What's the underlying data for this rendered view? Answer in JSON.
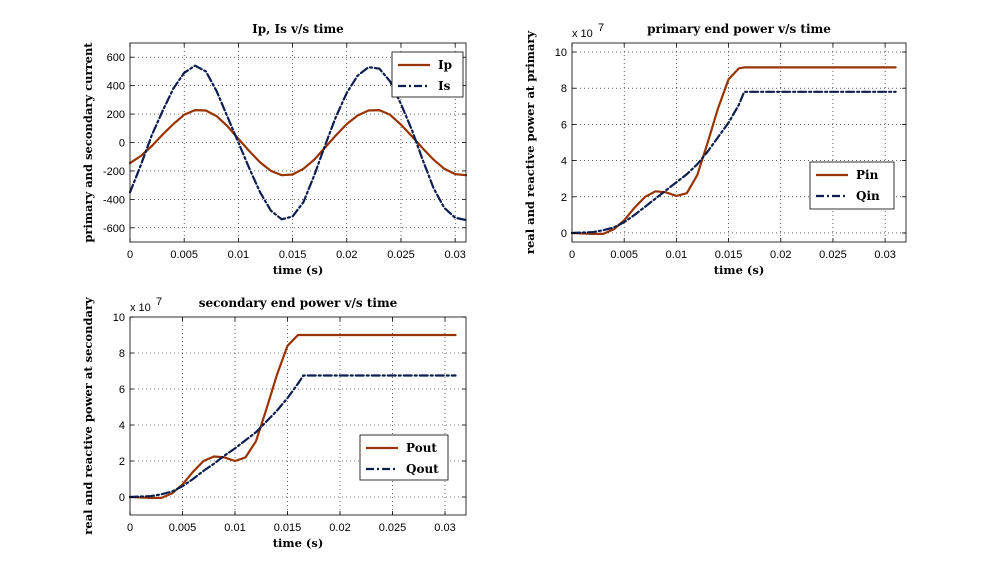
{
  "chart_data": [
    {
      "type": "line",
      "title": "Ip, Is v/s time",
      "xlabel": "time (s)",
      "ylabel": "primary and secondary current",
      "xlim": [
        0,
        0.031
      ],
      "ylim": [
        -700,
        700
      ],
      "xticks": [
        0,
        0.005,
        0.01,
        0.015,
        0.02,
        0.025,
        0.03
      ],
      "xtick_labels": [
        "0",
        "0.005",
        "0.01",
        "0.015",
        "0.02",
        "0.025",
        "0.03"
      ],
      "yticks": [
        -600,
        -400,
        -200,
        0,
        200,
        400,
        600
      ],
      "ytick_labels": [
        "-600",
        "-400",
        "-200",
        "0",
        "200",
        "400",
        "600"
      ],
      "grid": true,
      "legend_position": "top-right",
      "series": [
        {
          "name": "Ip",
          "color": "#993300",
          "style": "solid",
          "x": [
            0,
            0.001,
            0.002,
            0.003,
            0.004,
            0.005,
            0.006,
            0.007,
            0.008,
            0.009,
            0.01,
            0.011,
            0.012,
            0.013,
            0.014,
            0.015,
            0.016,
            0.017,
            0.018,
            0.019,
            0.02,
            0.021,
            0.022,
            0.023,
            0.024,
            0.025,
            0.026,
            0.027,
            0.028,
            0.029,
            0.03,
            0.031
          ],
          "y": [
            -145,
            -95,
            -25,
            55,
            130,
            195,
            228,
            225,
            185,
            115,
            25,
            -60,
            -140,
            -200,
            -230,
            -225,
            -185,
            -120,
            -35,
            50,
            130,
            190,
            225,
            228,
            195,
            125,
            45,
            -40,
            -120,
            -185,
            -222,
            -230
          ]
        },
        {
          "name": "Is",
          "color": "#0d1f50",
          "style": "dashdot",
          "x": [
            0,
            0.001,
            0.002,
            0.003,
            0.004,
            0.005,
            0.006,
            0.007,
            0.008,
            0.009,
            0.01,
            0.011,
            0.012,
            0.013,
            0.014,
            0.015,
            0.016,
            0.017,
            0.018,
            0.019,
            0.02,
            0.021,
            0.022,
            0.023,
            0.024,
            0.025,
            0.026,
            0.027,
            0.028,
            0.029,
            0.03,
            0.031
          ],
          "y": [
            -350,
            -160,
            50,
            220,
            380,
            490,
            540,
            500,
            360,
            180,
            0,
            -180,
            -350,
            -480,
            -540,
            -520,
            -420,
            -230,
            -20,
            180,
            350,
            470,
            530,
            520,
            430,
            270,
            90,
            -120,
            -320,
            -460,
            -530,
            -545
          ]
        }
      ]
    },
    {
      "type": "line",
      "title": "primary end power v/s time",
      "xlabel": "time (s)",
      "ylabel": "real and reactive power at primary",
      "multiplier": "x 10",
      "multiplier_exp": "7",
      "xlim": [
        0,
        0.032
      ],
      "ylim": [
        -0.5,
        10.5
      ],
      "xticks": [
        0,
        0.005,
        0.01,
        0.015,
        0.02,
        0.025,
        0.03
      ],
      "xtick_labels": [
        "0",
        "0.005",
        "0.01",
        "0.015",
        "0.02",
        "0.025",
        "0.03"
      ],
      "yticks": [
        0,
        2,
        4,
        6,
        8,
        10
      ],
      "ytick_labels": [
        "0",
        "2",
        "4",
        "6",
        "8",
        "10"
      ],
      "grid": true,
      "legend_position": "bottom-right",
      "series": [
        {
          "name": "Pin",
          "color": "#993300",
          "style": "solid",
          "x": [
            0,
            0.002,
            0.003,
            0.004,
            0.005,
            0.006,
            0.007,
            0.008,
            0.009,
            0.01,
            0.011,
            0.012,
            0.013,
            0.014,
            0.015,
            0.016,
            0.0165,
            0.017,
            0.02,
            0.025,
            0.031
          ],
          "y": [
            0,
            -0.05,
            -0.05,
            0.2,
            0.7,
            1.4,
            2.0,
            2.3,
            2.25,
            2.05,
            2.2,
            3.2,
            5.0,
            6.9,
            8.5,
            9.1,
            9.15,
            9.15,
            9.15,
            9.15,
            9.15
          ]
        },
        {
          "name": "Qin",
          "color": "#0d1f50",
          "style": "dashdot",
          "x": [
            0,
            0.002,
            0.003,
            0.004,
            0.005,
            0.006,
            0.007,
            0.008,
            0.009,
            0.01,
            0.011,
            0.012,
            0.013,
            0.014,
            0.015,
            0.016,
            0.0165,
            0.017,
            0.02,
            0.025,
            0.031
          ],
          "y": [
            0,
            0.05,
            0.15,
            0.3,
            0.6,
            1.0,
            1.45,
            1.9,
            2.35,
            2.8,
            3.25,
            3.8,
            4.5,
            5.3,
            6.1,
            7.1,
            7.8,
            7.8,
            7.8,
            7.8,
            7.8
          ]
        }
      ]
    },
    {
      "type": "line",
      "title": "secondary end power v/s time",
      "xlabel": "time (s)",
      "ylabel": "real and reactive power at secondary",
      "multiplier": "x 10",
      "multiplier_exp": "7",
      "xlim": [
        0,
        0.032
      ],
      "ylim": [
        -1,
        10
      ],
      "xticks": [
        0,
        0.005,
        0.01,
        0.015,
        0.02,
        0.025,
        0.03
      ],
      "xtick_labels": [
        "0",
        "0.005",
        "0.01",
        "0.015",
        "0.02",
        "0.025",
        "0.03"
      ],
      "yticks": [
        0,
        2,
        4,
        6,
        8,
        10
      ],
      "ytick_labels": [
        "0",
        "2",
        "4",
        "6",
        "8",
        "10"
      ],
      "grid": true,
      "legend_position": "bottom-right",
      "series": [
        {
          "name": "Pout",
          "color": "#993300",
          "style": "solid",
          "x": [
            0,
            0.002,
            0.003,
            0.004,
            0.005,
            0.006,
            0.007,
            0.008,
            0.009,
            0.01,
            0.011,
            0.012,
            0.013,
            0.014,
            0.015,
            0.016,
            0.0165,
            0.017,
            0.02,
            0.025,
            0.031
          ],
          "y": [
            0,
            -0.05,
            -0.05,
            0.2,
            0.7,
            1.4,
            2.0,
            2.25,
            2.2,
            2.0,
            2.2,
            3.1,
            4.9,
            6.8,
            8.4,
            9.0,
            9.0,
            9.0,
            9.0,
            9.0,
            9.0
          ]
        },
        {
          "name": "Qout",
          "color": "#0d1f50",
          "style": "dashdot",
          "x": [
            0,
            0.002,
            0.003,
            0.004,
            0.005,
            0.006,
            0.007,
            0.008,
            0.009,
            0.01,
            0.011,
            0.012,
            0.013,
            0.014,
            0.015,
            0.016,
            0.0165,
            0.017,
            0.02,
            0.025,
            0.031
          ],
          "y": [
            0,
            0.05,
            0.15,
            0.3,
            0.6,
            1.0,
            1.45,
            1.85,
            2.3,
            2.7,
            3.15,
            3.6,
            4.2,
            4.8,
            5.5,
            6.3,
            6.75,
            6.75,
            6.75,
            6.75,
            6.75
          ]
        }
      ]
    }
  ]
}
